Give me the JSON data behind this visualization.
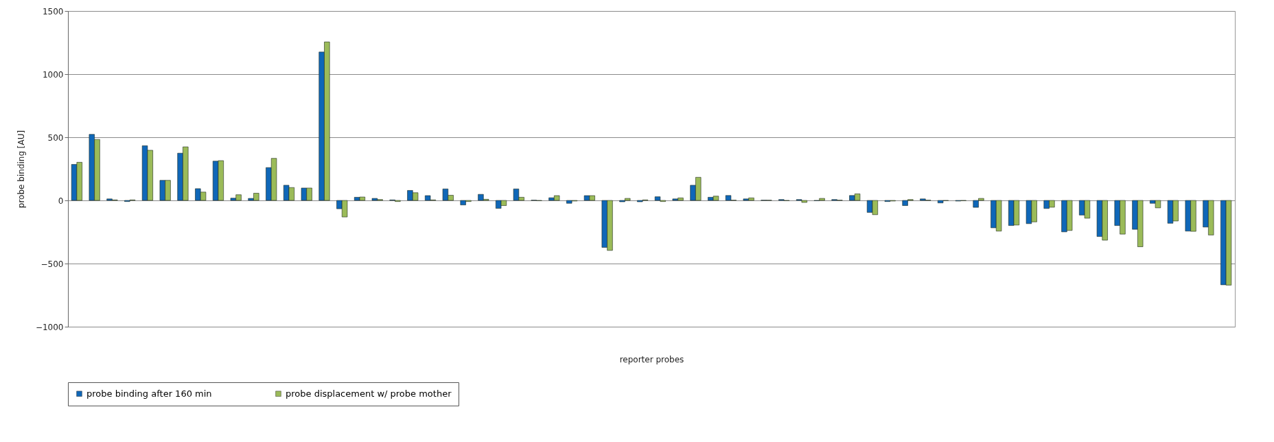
{
  "chart_data": {
    "type": "bar",
    "xlabel": "reporter probes",
    "ylabel": "probe binding [AU]",
    "categories": [
      null,
      null,
      null,
      null,
      null,
      null,
      null,
      null,
      null,
      null,
      null,
      null,
      null,
      null,
      null,
      null,
      null,
      null,
      null,
      null,
      null,
      null,
      null,
      null,
      null,
      null,
      null,
      null,
      null,
      null,
      null,
      null,
      null,
      null,
      null,
      null,
      null,
      null,
      null,
      null,
      null,
      null,
      null,
      null,
      null,
      null,
      null,
      null,
      null,
      null,
      null,
      null,
      null,
      null,
      null,
      null,
      null,
      null,
      null,
      null,
      null,
      null,
      null,
      null,
      null,
      null
    ],
    "series": [
      {
        "name": "probe binding after 160 min",
        "color": "#0f67b8",
        "values": [
          285,
          523,
          12,
          -9,
          433,
          159,
          374,
          93,
          311,
          18,
          16,
          260,
          120,
          98,
          1175,
          -66,
          25,
          16,
          4,
          79,
          38,
          91,
          -36,
          48,
          -63,
          91,
          2,
          21,
          -23,
          38,
          -372,
          -11,
          -11,
          29,
          12,
          120,
          25,
          39,
          12,
          2,
          7,
          7,
          -2,
          7,
          39,
          -95,
          -9,
          -41,
          12,
          -20,
          -5,
          -55,
          -217,
          -199,
          -184,
          -64,
          -249,
          -116,
          -286,
          -199,
          -229,
          -23,
          -181,
          -243,
          -211,
          -668
        ]
      },
      {
        "name": "probe displacement w/ probe mother",
        "color": "#9bbb59",
        "values": [
          302,
          483,
          4,
          4,
          397,
          159,
          424,
          66,
          315,
          45,
          57,
          333,
          102,
          98,
          1255,
          -131,
          27,
          7,
          -9,
          61,
          4,
          41,
          -9,
          9,
          -41,
          25,
          -2,
          38,
          -5,
          38,
          -396,
          16,
          4,
          -9,
          20,
          183,
          34,
          2,
          20,
          2,
          -2,
          -16,
          16,
          2,
          52,
          -113,
          -5,
          7,
          2,
          -2,
          -2,
          16,
          -243,
          -195,
          -170,
          -54,
          -238,
          -141,
          -315,
          -267,
          -367,
          -59,
          -163,
          -245,
          -274,
          -671
        ]
      }
    ],
    "ylim": [
      -1000,
      1500
    ],
    "yticks": [
      -1000,
      -500,
      0,
      500,
      1000,
      1500
    ],
    "grid": "y",
    "legend": "bottom"
  }
}
